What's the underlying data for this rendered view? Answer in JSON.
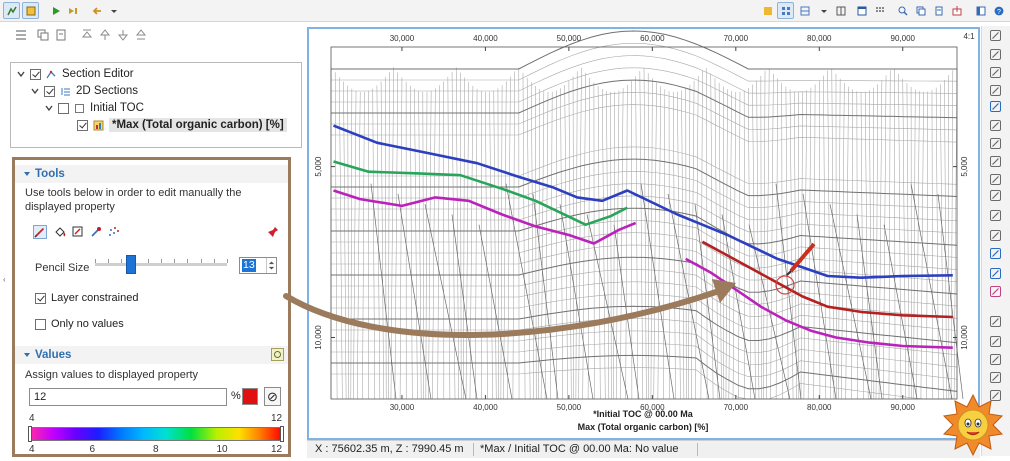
{
  "tree": {
    "items": [
      {
        "label": "Section Editor",
        "checked": true
      },
      {
        "label": "2D Sections",
        "checked": true
      },
      {
        "label": "Initial TOC",
        "checked": false
      },
      {
        "label": "*Max (Total organic carbon) [%]",
        "checked": true
      }
    ]
  },
  "tools_section": {
    "title": "Tools",
    "description": "Use tools below in order to edit manually the displayed property",
    "pencil_size_label": "Pencil Size",
    "pencil_size_value": "13",
    "pencil_size_level": 0.27,
    "layer_constrained_label": "Layer constrained",
    "layer_constrained_checked": true,
    "only_no_values_label": "Only no values",
    "only_no_values_checked": false
  },
  "values_section": {
    "title": "Values",
    "description": "Assign values to displayed property",
    "value": "12",
    "unit": "%",
    "swatch_color": "#e01010",
    "clear_symbol": "⊘",
    "range_min_label": "4",
    "range_max_label": "12",
    "scale_ticks": [
      "4",
      "6",
      "8",
      "10",
      "12"
    ]
  },
  "chart_data": {
    "type": "line",
    "x_ticks": [
      "30,000",
      "40,000",
      "50,000",
      "60,000",
      "70,000",
      "80,000",
      "90,000"
    ],
    "x_tick_values": [
      30000,
      40000,
      50000,
      60000,
      70000,
      80000,
      90000
    ],
    "y_ticks": [
      "5,000",
      "10,000"
    ],
    "y_tick_values": [
      5000,
      10000
    ],
    "xlim": [
      21500,
      96500
    ],
    "ylim": [
      1500,
      11800
    ],
    "aspect_label": "4:1",
    "bottom_title": "*Initial TOC @ 00.00 Ma",
    "xlabel": "Max (Total organic carbon) [%]",
    "series": [
      {
        "color": "#2c3fbf",
        "x": [
          21800,
          27000,
          33000,
          39000,
          44000,
          48000,
          51000,
          54000,
          57000,
          60000,
          63000,
          66000,
          69000,
          72000,
          75000,
          78000,
          81000,
          85000,
          90000,
          96000
        ],
        "y": [
          3800,
          4300,
          4600,
          4900,
          5300,
          5600,
          5900,
          6000,
          5700,
          6050,
          6400,
          6700,
          7000,
          7350,
          7700,
          7950,
          8200,
          8250,
          8200,
          8180
        ]
      },
      {
        "color": "#27a55a",
        "x": [
          21800,
          26000,
          32000,
          37000,
          42000,
          46000,
          49000,
          52000,
          55000,
          57000
        ],
        "y": [
          4850,
          5150,
          5200,
          5250,
          5650,
          6000,
          6350,
          6700,
          6450,
          6200
        ]
      },
      {
        "color": "#bb22bb",
        "x": [
          21800,
          25000,
          30000,
          34000,
          38000,
          42000,
          46000,
          50000,
          53000,
          56000,
          58000
        ],
        "y": [
          5700,
          5950,
          6150,
          5900,
          6000,
          6400,
          6750,
          7000,
          7250,
          6850,
          6650
        ]
      },
      {
        "color": "#b52020",
        "x": [
          66000,
          69000,
          72000,
          75000,
          78000,
          81000,
          85000,
          90000,
          96000
        ],
        "y": [
          7200,
          7600,
          8000,
          8400,
          8800,
          9100,
          9250,
          9350,
          9400
        ]
      },
      {
        "color": "#bb22bb",
        "x": [
          64000,
          67000,
          70000,
          73000,
          76000,
          79000,
          82000,
          86000,
          90000,
          96000
        ],
        "y": [
          7700,
          8100,
          8600,
          9100,
          9500,
          9800,
          10000,
          10150,
          10250,
          10300
        ]
      }
    ]
  },
  "status": {
    "coords": "X : 75602.35 m,   Z : 7990.45 m",
    "info": "*Max / Initial TOC @ 00.00 Ma: No value"
  },
  "colors": {
    "accent": "#2f6fb0",
    "panel_border": "#9c7a5c",
    "chart_border": "#7fb3e6"
  }
}
